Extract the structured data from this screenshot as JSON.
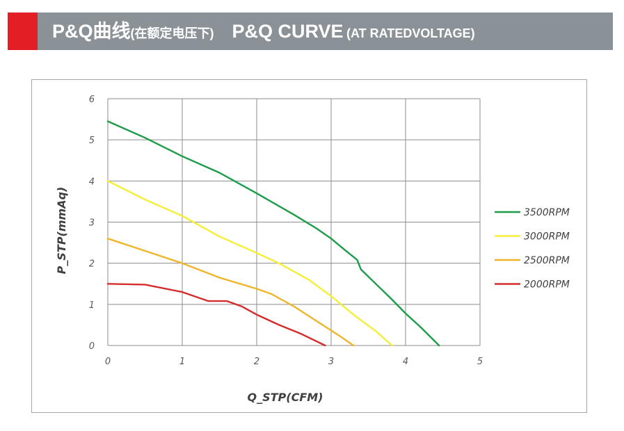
{
  "header": {
    "title_cn": "P&Q曲线",
    "title_cn_sub": "(在额定电压下)",
    "title_en": "P&Q CURVE",
    "title_en_sub": "(AT RATEDVOLTAGE)",
    "accent_color": "#e31e24",
    "bar_color": "#8a9297"
  },
  "chart_data": {
    "type": "line",
    "xlabel": "Q_STP(CFM)",
    "ylabel": "P_STP(mmAq)",
    "xlim": [
      0,
      5
    ],
    "ylim": [
      0,
      6
    ],
    "x_ticks": [
      "0",
      "1",
      "2",
      "3",
      "4",
      "5"
    ],
    "y_ticks": [
      "0",
      "1",
      "2",
      "3",
      "4",
      "5",
      "6"
    ],
    "grid": true,
    "legend_position": "right",
    "series": [
      {
        "name": "3500RPM",
        "color": "#1a9c48",
        "points": [
          [
            0,
            5.45
          ],
          [
            0.5,
            5.05
          ],
          [
            1.0,
            4.6
          ],
          [
            1.5,
            4.2
          ],
          [
            2.0,
            3.7
          ],
          [
            2.5,
            3.18
          ],
          [
            2.8,
            2.85
          ],
          [
            3.0,
            2.6
          ],
          [
            3.2,
            2.3
          ],
          [
            3.35,
            2.08
          ],
          [
            3.4,
            1.85
          ],
          [
            3.6,
            1.5
          ],
          [
            3.8,
            1.15
          ],
          [
            4.0,
            0.78
          ],
          [
            4.2,
            0.45
          ],
          [
            4.45,
            0.0
          ]
        ]
      },
      {
        "name": "3000RPM",
        "color": "#f5ee37",
        "points": [
          [
            0,
            4.0
          ],
          [
            0.5,
            3.55
          ],
          [
            1.0,
            3.15
          ],
          [
            1.5,
            2.65
          ],
          [
            2.0,
            2.25
          ],
          [
            2.3,
            2.0
          ],
          [
            2.7,
            1.6
          ],
          [
            3.0,
            1.2
          ],
          [
            3.3,
            0.75
          ],
          [
            3.6,
            0.35
          ],
          [
            3.82,
            0.0
          ]
        ]
      },
      {
        "name": "2500RPM",
        "color": "#f0b429",
        "points": [
          [
            0,
            2.6
          ],
          [
            0.5,
            2.3
          ],
          [
            1.0,
            2.0
          ],
          [
            1.5,
            1.65
          ],
          [
            2.0,
            1.38
          ],
          [
            2.2,
            1.25
          ],
          [
            2.5,
            0.95
          ],
          [
            2.8,
            0.6
          ],
          [
            3.1,
            0.25
          ],
          [
            3.3,
            0.0
          ]
        ]
      },
      {
        "name": "2000RPM",
        "color": "#d62b2b",
        "points": [
          [
            0,
            1.5
          ],
          [
            0.5,
            1.48
          ],
          [
            1.0,
            1.3
          ],
          [
            1.35,
            1.08
          ],
          [
            1.6,
            1.08
          ],
          [
            1.8,
            0.95
          ],
          [
            2.0,
            0.75
          ],
          [
            2.3,
            0.5
          ],
          [
            2.6,
            0.28
          ],
          [
            2.92,
            0.0
          ]
        ]
      }
    ]
  }
}
